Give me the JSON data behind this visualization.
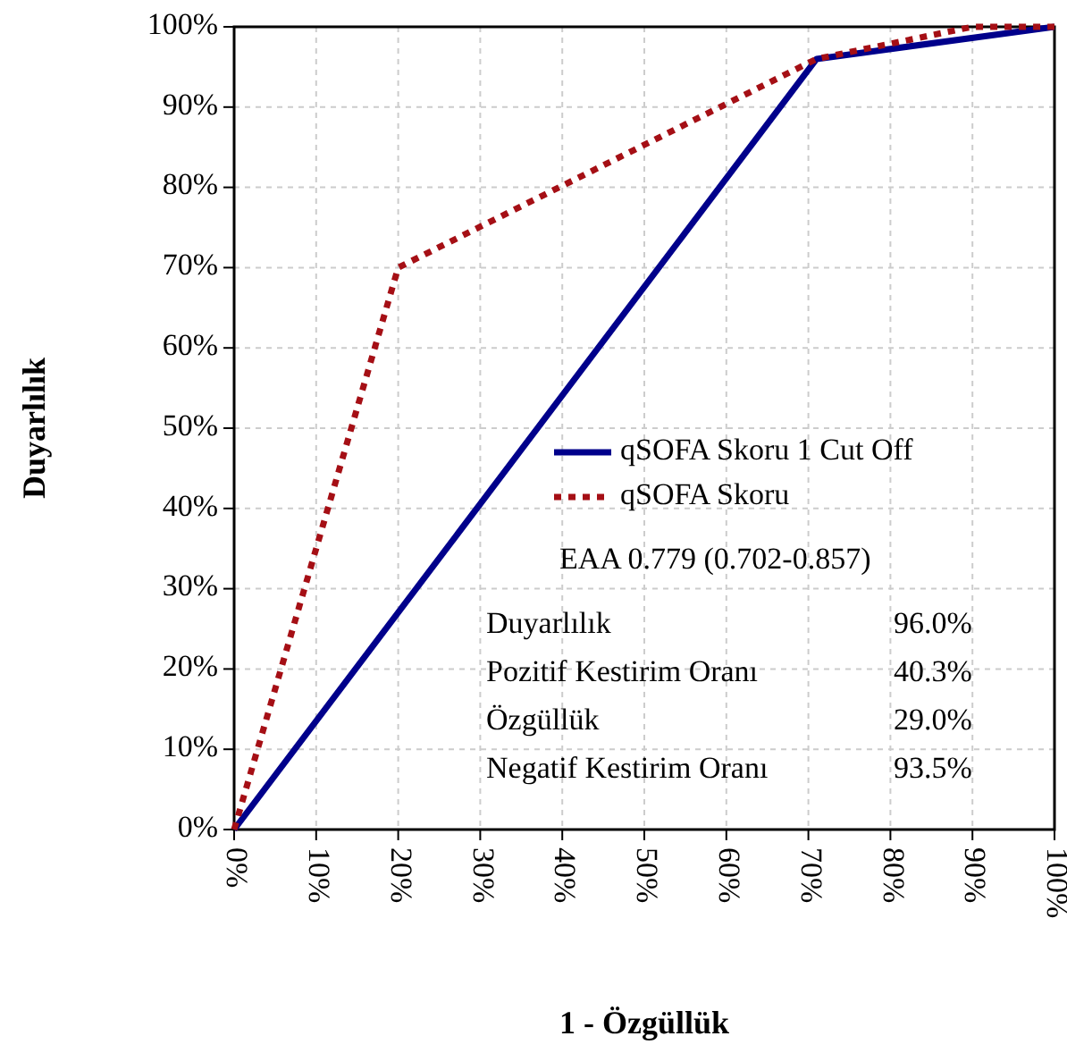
{
  "chart_data": {
    "type": "line",
    "xlabel": "1 - Özgüllük",
    "ylabel": "Duyarlılık",
    "xlim": [
      0,
      100
    ],
    "ylim": [
      0,
      100
    ],
    "xticks": [
      {
        "value": 0,
        "label": "0%"
      },
      {
        "value": 10,
        "label": "10%"
      },
      {
        "value": 20,
        "label": "20%"
      },
      {
        "value": 30,
        "label": "30%"
      },
      {
        "value": 40,
        "label": "40%"
      },
      {
        "value": 50,
        "label": "50%"
      },
      {
        "value": 60,
        "label": "60%"
      },
      {
        "value": 70,
        "label": "70%"
      },
      {
        "value": 80,
        "label": "80%"
      },
      {
        "value": 90,
        "label": "90%"
      },
      {
        "value": 100,
        "label": "100%"
      }
    ],
    "yticks": [
      {
        "value": 0,
        "label": "0%"
      },
      {
        "value": 10,
        "label": "10%"
      },
      {
        "value": 20,
        "label": "20%"
      },
      {
        "value": 30,
        "label": "30%"
      },
      {
        "value": 40,
        "label": "40%"
      },
      {
        "value": 50,
        "label": "50%"
      },
      {
        "value": 60,
        "label": "60%"
      },
      {
        "value": 70,
        "label": "70%"
      },
      {
        "value": 80,
        "label": "80%"
      },
      {
        "value": 90,
        "label": "90%"
      },
      {
        "value": 100,
        "label": "100%"
      }
    ],
    "grid": true,
    "legend": "right",
    "marker": "none",
    "series": [
      {
        "name": "qSOFA Skoru 1 Cut Off",
        "color": "#00008b",
        "line_style": "solid",
        "x": [
          0,
          71,
          100
        ],
        "values": [
          0,
          96,
          100
        ]
      },
      {
        "name": "qSOFA Skoru",
        "color": "#a50f15",
        "line_style": "dotted",
        "x": [
          0,
          20,
          71,
          90,
          100
        ],
        "values": [
          0,
          70,
          96,
          100,
          100
        ]
      }
    ],
    "annotations": [
      "EAA 0.779 (0.702-0.857)",
      "Duyarlılık",
      "96.0%",
      "Pozitif Kestirim Oranı",
      "40.3%",
      "Özgüllük",
      "29.0%",
      "Negatif Kestirim Oranı",
      "93.5%"
    ]
  }
}
